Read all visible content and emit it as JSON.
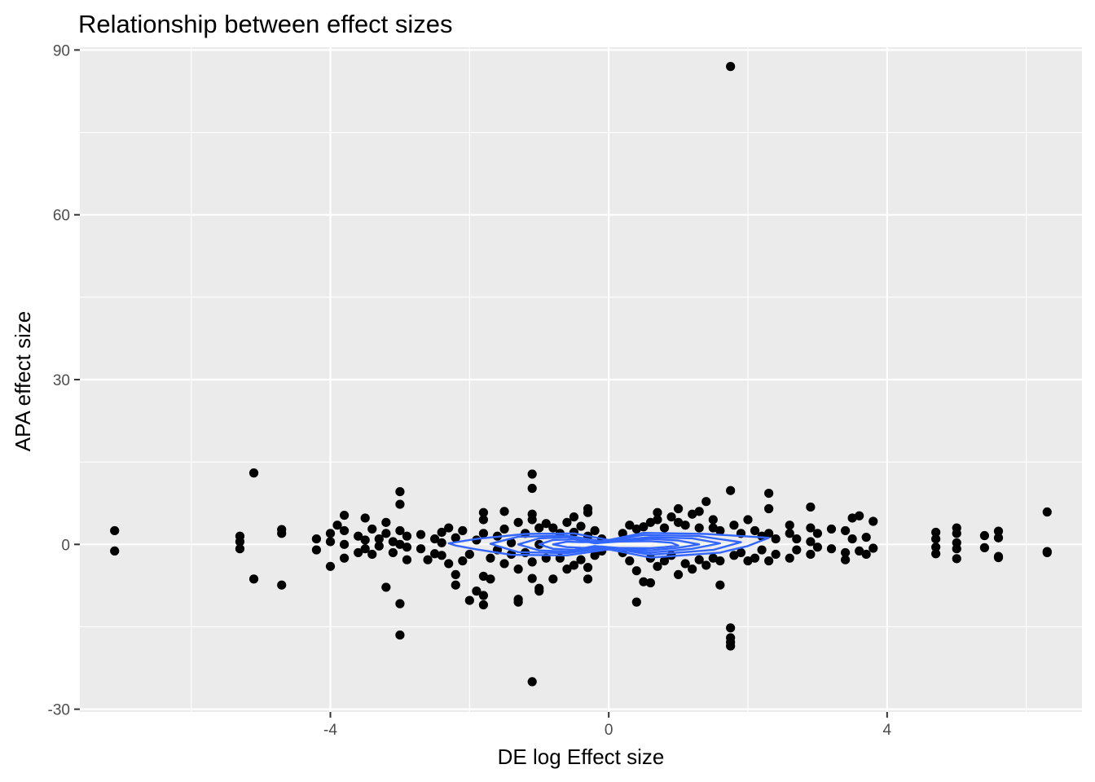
{
  "chart_data": {
    "type": "scatter",
    "title": "Relationship between effect sizes",
    "xlabel": "DE log Effect size",
    "ylabel": "APA effect size",
    "xlim": [
      -7.6,
      6.8
    ],
    "ylim": [
      -30.5,
      90.5
    ],
    "x_ticks": [
      -4,
      0,
      4
    ],
    "x_tick_labels": [
      "-4",
      "0",
      "4"
    ],
    "y_ticks": [
      -30,
      0,
      30,
      60,
      90
    ],
    "y_tick_labels": [
      "-30",
      "0",
      "30",
      "60",
      "90"
    ],
    "grid": true,
    "panel_background": "#ebebeb",
    "point_color": "#000000",
    "contour_color": "#3366ff",
    "points": [
      {
        "x": -7.1,
        "y": 2.5
      },
      {
        "x": -7.1,
        "y": -1.2
      },
      {
        "x": -5.3,
        "y": 1.5
      },
      {
        "x": -5.3,
        "y": 0.5
      },
      {
        "x": -5.3,
        "y": -0.8
      },
      {
        "x": -5.1,
        "y": 13.0
      },
      {
        "x": -5.1,
        "y": -6.3
      },
      {
        "x": -4.7,
        "y": 2.7
      },
      {
        "x": -4.7,
        "y": 2.0
      },
      {
        "x": -4.7,
        "y": -7.4
      },
      {
        "x": -4.2,
        "y": 1.0
      },
      {
        "x": -4.2,
        "y": -1.0
      },
      {
        "x": -4.0,
        "y": 2.0
      },
      {
        "x": -4.0,
        "y": -4.0
      },
      {
        "x": -4.0,
        "y": 0.5
      },
      {
        "x": -3.9,
        "y": 3.5
      },
      {
        "x": -3.8,
        "y": 5.3
      },
      {
        "x": -3.8,
        "y": 2.5
      },
      {
        "x": -3.8,
        "y": -2.5
      },
      {
        "x": -3.8,
        "y": 0.0
      },
      {
        "x": -3.6,
        "y": 1.5
      },
      {
        "x": -3.6,
        "y": -1.5
      },
      {
        "x": -3.5,
        "y": 4.8
      },
      {
        "x": -3.5,
        "y": 0.8
      },
      {
        "x": -3.5,
        "y": -0.8
      },
      {
        "x": -3.4,
        "y": 2.8
      },
      {
        "x": -3.4,
        "y": -1.8
      },
      {
        "x": -3.3,
        "y": 1.0
      },
      {
        "x": -3.3,
        "y": -0.3
      },
      {
        "x": -3.2,
        "y": 4.0
      },
      {
        "x": -3.2,
        "y": -7.8
      },
      {
        "x": -3.2,
        "y": 2.0
      },
      {
        "x": -3.1,
        "y": -1.5
      },
      {
        "x": -3.1,
        "y": 0.5
      },
      {
        "x": -2.9,
        "y": 1.5
      },
      {
        "x": -2.9,
        "y": -0.5
      },
      {
        "x": -3.0,
        "y": 9.6
      },
      {
        "x": -3.0,
        "y": 7.3
      },
      {
        "x": -3.0,
        "y": -10.8
      },
      {
        "x": -3.0,
        "y": -16.5
      },
      {
        "x": -3.0,
        "y": 2.5
      },
      {
        "x": -3.0,
        "y": 0.0
      },
      {
        "x": -2.9,
        "y": -2.8
      },
      {
        "x": -2.7,
        "y": 1.8
      },
      {
        "x": -2.7,
        "y": -0.8
      },
      {
        "x": -2.6,
        "y": -2.8
      },
      {
        "x": -2.5,
        "y": 1.0
      },
      {
        "x": -2.5,
        "y": -1.7
      },
      {
        "x": -2.4,
        "y": 2.2
      },
      {
        "x": -2.4,
        "y": -2.0
      },
      {
        "x": -2.4,
        "y": 0.3
      },
      {
        "x": -2.3,
        "y": -3.5
      },
      {
        "x": -2.3,
        "y": 3.0
      },
      {
        "x": -2.2,
        "y": -7.4
      },
      {
        "x": -2.2,
        "y": -5.5
      },
      {
        "x": -2.2,
        "y": 1.2
      },
      {
        "x": -2.1,
        "y": -3.0
      },
      {
        "x": -2.1,
        "y": 2.5
      },
      {
        "x": -2.0,
        "y": -10.2
      },
      {
        "x": -2.0,
        "y": -1.8
      },
      {
        "x": -1.9,
        "y": -8.5
      },
      {
        "x": -1.9,
        "y": 0.8
      },
      {
        "x": -1.8,
        "y": -11.0
      },
      {
        "x": -1.8,
        "y": -9.3
      },
      {
        "x": -1.8,
        "y": 5.8
      },
      {
        "x": -1.8,
        "y": 4.5
      },
      {
        "x": -1.8,
        "y": 2.0
      },
      {
        "x": -1.8,
        "y": -5.8
      },
      {
        "x": -1.7,
        "y": -6.3
      },
      {
        "x": -1.7,
        "y": -2.5
      },
      {
        "x": -1.6,
        "y": 1.5
      },
      {
        "x": -1.6,
        "y": -1.0
      },
      {
        "x": -1.5,
        "y": 6.0
      },
      {
        "x": -1.5,
        "y": 2.8
      },
      {
        "x": -1.4,
        "y": -1.8
      },
      {
        "x": -1.4,
        "y": 0.3
      },
      {
        "x": -1.5,
        "y": -3.5
      },
      {
        "x": -1.3,
        "y": 4.0
      },
      {
        "x": -1.3,
        "y": -4.5
      },
      {
        "x": -1.3,
        "y": -10.0
      },
      {
        "x": -1.3,
        "y": -10.5
      },
      {
        "x": -1.2,
        "y": 2.0
      },
      {
        "x": -1.2,
        "y": -1.5
      },
      {
        "x": -1.1,
        "y": 4.5
      },
      {
        "x": -1.1,
        "y": -3.2
      },
      {
        "x": -1.0,
        "y": -8.0
      },
      {
        "x": -1.0,
        "y": -8.5
      },
      {
        "x": -1.0,
        "y": 3.0
      },
      {
        "x": -1.0,
        "y": 0.0
      },
      {
        "x": -0.9,
        "y": -2.5
      },
      {
        "x": -0.9,
        "y": 3.8
      },
      {
        "x": -1.1,
        "y": 12.8
      },
      {
        "x": -1.1,
        "y": 10.2
      },
      {
        "x": -1.1,
        "y": 5.5
      },
      {
        "x": -1.1,
        "y": -6.2
      },
      {
        "x": -1.1,
        "y": -25.0
      },
      {
        "x": -0.8,
        "y": 3.0
      },
      {
        "x": -0.8,
        "y": -6.3
      },
      {
        "x": -0.7,
        "y": 2.0
      },
      {
        "x": -0.7,
        "y": -2.5
      },
      {
        "x": -0.6,
        "y": 4.0
      },
      {
        "x": -0.6,
        "y": -4.5
      },
      {
        "x": -0.5,
        "y": 5.0
      },
      {
        "x": -0.5,
        "y": 2.2
      },
      {
        "x": -0.5,
        "y": -3.8
      },
      {
        "x": -0.4,
        "y": 3.3
      },
      {
        "x": -0.4,
        "y": -2.8
      },
      {
        "x": -0.3,
        "y": 1.5
      },
      {
        "x": -0.3,
        "y": -4.2
      },
      {
        "x": -0.3,
        "y": 6.5
      },
      {
        "x": -0.3,
        "y": 5.8
      },
      {
        "x": -0.3,
        "y": -6.3
      },
      {
        "x": -0.2,
        "y": 2.5
      },
      {
        "x": -0.2,
        "y": -2.0
      },
      {
        "x": -0.1,
        "y": 1.0
      },
      {
        "x": -0.1,
        "y": -1.2
      },
      {
        "x": 0.2,
        "y": 2.0
      },
      {
        "x": 0.2,
        "y": -1.5
      },
      {
        "x": 0.3,
        "y": 3.5
      },
      {
        "x": 0.3,
        "y": -3.0
      },
      {
        "x": 0.4,
        "y": -4.8
      },
      {
        "x": 0.4,
        "y": 2.8
      },
      {
        "x": 0.4,
        "y": -10.5
      },
      {
        "x": 0.5,
        "y": -6.8
      },
      {
        "x": 0.5,
        "y": 3.2
      },
      {
        "x": 0.6,
        "y": -7.0
      },
      {
        "x": 0.6,
        "y": 4.0
      },
      {
        "x": 0.6,
        "y": -2.5
      },
      {
        "x": 0.7,
        "y": 5.8
      },
      {
        "x": 0.7,
        "y": 4.5
      },
      {
        "x": 0.7,
        "y": -4.0
      },
      {
        "x": 0.8,
        "y": 3.0
      },
      {
        "x": 0.8,
        "y": -3.0
      },
      {
        "x": 0.9,
        "y": 5.0
      },
      {
        "x": 0.9,
        "y": -2.0
      },
      {
        "x": 1.0,
        "y": 6.5
      },
      {
        "x": 1.0,
        "y": 4.0
      },
      {
        "x": 1.0,
        "y": -5.5
      },
      {
        "x": 1.1,
        "y": 3.5
      },
      {
        "x": 1.1,
        "y": -3.5
      },
      {
        "x": 1.2,
        "y": 5.5
      },
      {
        "x": 1.2,
        "y": -4.5
      },
      {
        "x": 1.3,
        "y": 6.0
      },
      {
        "x": 1.3,
        "y": 3.0
      },
      {
        "x": 1.3,
        "y": -2.8
      },
      {
        "x": 1.4,
        "y": 7.8
      },
      {
        "x": 1.4,
        "y": -3.8
      },
      {
        "x": 1.5,
        "y": 4.5
      },
      {
        "x": 1.5,
        "y": 3.0
      },
      {
        "x": 1.5,
        "y": -2.5
      },
      {
        "x": 1.6,
        "y": -7.4
      },
      {
        "x": 1.6,
        "y": 2.5
      },
      {
        "x": 1.6,
        "y": -3.0
      },
      {
        "x": 1.75,
        "y": 87.0
      },
      {
        "x": 1.75,
        "y": 9.8
      },
      {
        "x": 1.75,
        "y": -15.2
      },
      {
        "x": 1.75,
        "y": -17.0
      },
      {
        "x": 1.75,
        "y": -17.8
      },
      {
        "x": 1.75,
        "y": -18.5
      },
      {
        "x": 1.8,
        "y": 3.5
      },
      {
        "x": 1.8,
        "y": -2.0
      },
      {
        "x": 1.9,
        "y": 2.0
      },
      {
        "x": 1.9,
        "y": -1.5
      },
      {
        "x": 2.0,
        "y": 4.5
      },
      {
        "x": 2.0,
        "y": -3.0
      },
      {
        "x": 2.1,
        "y": 2.5
      },
      {
        "x": 2.1,
        "y": -2.5
      },
      {
        "x": 2.2,
        "y": 1.5
      },
      {
        "x": 2.2,
        "y": -1.0
      },
      {
        "x": 2.3,
        "y": 9.3
      },
      {
        "x": 2.3,
        "y": 6.5
      },
      {
        "x": 2.3,
        "y": 2.0
      },
      {
        "x": 2.3,
        "y": -3.0
      },
      {
        "x": 2.4,
        "y": 1.0
      },
      {
        "x": 2.4,
        "y": -1.8
      },
      {
        "x": 2.6,
        "y": 3.5
      },
      {
        "x": 2.6,
        "y": 2.0
      },
      {
        "x": 2.6,
        "y": -2.5
      },
      {
        "x": 2.7,
        "y": 1.0
      },
      {
        "x": 2.7,
        "y": -1.0
      },
      {
        "x": 2.9,
        "y": 6.8
      },
      {
        "x": 2.9,
        "y": 3.0
      },
      {
        "x": 2.9,
        "y": -1.8
      },
      {
        "x": 2.9,
        "y": 0.5
      },
      {
        "x": 3.0,
        "y": 2.0
      },
      {
        "x": 3.0,
        "y": -0.5
      },
      {
        "x": 3.2,
        "y": 2.8
      },
      {
        "x": 3.2,
        "y": -0.8
      },
      {
        "x": 3.4,
        "y": 2.5
      },
      {
        "x": 3.4,
        "y": -1.5
      },
      {
        "x": 3.4,
        "y": -2.8
      },
      {
        "x": 3.5,
        "y": 4.8
      },
      {
        "x": 3.5,
        "y": 1.0
      },
      {
        "x": 3.6,
        "y": 5.2
      },
      {
        "x": 3.6,
        "y": -1.2
      },
      {
        "x": 3.7,
        "y": 1.3
      },
      {
        "x": 3.7,
        "y": -1.8
      },
      {
        "x": 3.8,
        "y": 4.2
      },
      {
        "x": 3.8,
        "y": -0.7
      },
      {
        "x": 4.7,
        "y": 2.2
      },
      {
        "x": 4.7,
        "y": 1.0
      },
      {
        "x": 4.7,
        "y": -0.5
      },
      {
        "x": 4.7,
        "y": -1.7
      },
      {
        "x": 5.0,
        "y": 3.0
      },
      {
        "x": 5.0,
        "y": 2.0
      },
      {
        "x": 5.0,
        "y": 0.3
      },
      {
        "x": 5.0,
        "y": -0.8
      },
      {
        "x": 5.0,
        "y": -2.6
      },
      {
        "x": 5.4,
        "y": 1.6
      },
      {
        "x": 5.4,
        "y": -0.6
      },
      {
        "x": 5.6,
        "y": 2.4
      },
      {
        "x": 5.6,
        "y": 1.2
      },
      {
        "x": 5.6,
        "y": -2.2
      },
      {
        "x": 5.6,
        "y": -2.4
      },
      {
        "x": 6.3,
        "y": 5.9
      },
      {
        "x": 6.3,
        "y": -1.3
      },
      {
        "x": 6.3,
        "y": -1.5
      }
    ],
    "contours": [
      [
        [
          -2.3,
          0.2
        ],
        [
          -1.9,
          1.0
        ],
        [
          -1.2,
          1.9
        ],
        [
          -0.5,
          2.0
        ],
        [
          0.0,
          0.8
        ],
        [
          0.5,
          2.1
        ],
        [
          1.4,
          1.9
        ],
        [
          2.3,
          1.2
        ],
        [
          2.0,
          -0.3
        ],
        [
          1.6,
          -1.5
        ],
        [
          0.6,
          -2.4
        ],
        [
          0.0,
          -0.9
        ],
        [
          -0.6,
          -2.0
        ],
        [
          -1.4,
          -1.9
        ],
        [
          -1.9,
          -0.9
        ],
        [
          -2.2,
          -0.2
        ]
      ],
      [
        [
          -1.7,
          0.1
        ],
        [
          -1.3,
          1.4
        ],
        [
          -0.6,
          1.6
        ],
        [
          -0.1,
          0.6
        ],
        [
          0.5,
          1.7
        ],
        [
          1.3,
          1.5
        ],
        [
          1.9,
          0.4
        ],
        [
          1.5,
          -1.0
        ],
        [
          0.6,
          -1.9
        ],
        [
          0.0,
          -0.6
        ],
        [
          -0.6,
          -1.6
        ],
        [
          -1.3,
          -1.4
        ]
      ],
      [
        [
          -1.3,
          0.0
        ],
        [
          -1.0,
          1.1
        ],
        [
          -0.6,
          1.3
        ],
        [
          -0.2,
          0.4
        ],
        [
          0.6,
          1.3
        ],
        [
          1.2,
          1.1
        ],
        [
          1.6,
          0.2
        ],
        [
          1.2,
          -0.8
        ],
        [
          0.6,
          -1.5
        ],
        [
          -0.1,
          -0.4
        ],
        [
          -0.6,
          -1.3
        ],
        [
          -1.0,
          -1.1
        ]
      ],
      [
        [
          -1.0,
          0.0
        ],
        [
          -0.8,
          0.8
        ],
        [
          -0.5,
          0.9
        ],
        [
          -0.2,
          0.2
        ],
        [
          0.6,
          1.0
        ],
        [
          1.0,
          0.7
        ],
        [
          1.3,
          0.0
        ],
        [
          1.0,
          -0.6
        ],
        [
          0.6,
          -1.1
        ],
        [
          -0.2,
          -0.3
        ],
        [
          -0.5,
          -1.0
        ],
        [
          -0.8,
          -0.8
        ]
      ],
      [
        [
          -0.8,
          0.0
        ],
        [
          -0.6,
          0.5
        ],
        [
          -0.4,
          0.4
        ],
        [
          0.6,
          0.6
        ],
        [
          0.9,
          0.3
        ],
        [
          1.0,
          -0.2
        ],
        [
          0.8,
          -0.5
        ],
        [
          0.6,
          -0.7
        ],
        [
          -0.4,
          -0.6
        ],
        [
          -0.6,
          -0.5
        ]
      ]
    ]
  }
}
